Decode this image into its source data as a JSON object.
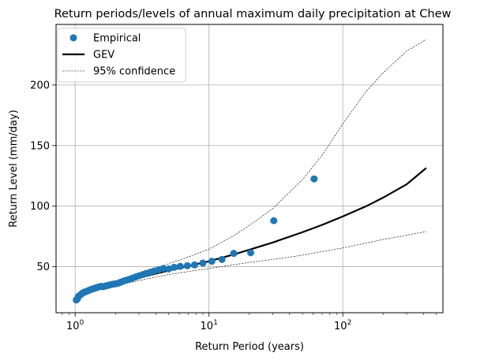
{
  "chart_data": {
    "type": "scatter",
    "title": "Return periods/levels of annual maximum daily precipitation at Chew",
    "xlabel": "Return Period (years)",
    "ylabel": "Return Level (mm/day)",
    "xscale": "log",
    "xlim": [
      0.72,
      560
    ],
    "ylim": [
      12,
      250
    ],
    "grid": true,
    "legend_position": "top-left",
    "x_ticks": [
      {
        "value": 1,
        "base": "10",
        "exp": "0"
      },
      {
        "value": 10,
        "base": "10",
        "exp": "1"
      },
      {
        "value": 100,
        "base": "10",
        "exp": "2"
      }
    ],
    "y_ticks": [
      {
        "value": 50,
        "label": "50"
      },
      {
        "value": 100,
        "label": "100"
      },
      {
        "value": 150,
        "label": "150"
      },
      {
        "value": 200,
        "label": "200"
      }
    ],
    "legend": [
      {
        "label": "Empirical",
        "style": "marker",
        "color": "#1f77b4"
      },
      {
        "label": "GEV",
        "style": "solid",
        "color": "#000000"
      },
      {
        "label": "95% confidence",
        "style": "dashed",
        "color": "#000000"
      }
    ],
    "series": [
      {
        "name": "Empirical",
        "kind": "scatter",
        "color": "#1f77b4",
        "x": [
          1.02,
          1.04,
          1.06,
          1.1,
          1.13,
          1.17,
          1.21,
          1.25,
          1.3,
          1.35,
          1.4,
          1.45,
          1.5,
          1.56,
          1.62,
          1.68,
          1.75,
          1.82,
          1.9,
          1.98,
          2.07,
          2.17,
          2.28,
          2.4,
          2.53,
          2.67,
          2.83,
          3.0,
          3.2,
          3.4,
          3.65,
          3.9,
          4.2,
          4.55,
          5.0,
          5.5,
          6.1,
          6.9,
          7.8,
          9.0,
          10.5,
          12.5,
          15.3,
          20.5,
          30.5,
          61.0
        ],
        "y": [
          22.5,
          23.5,
          25.5,
          27.0,
          28.0,
          29.0,
          29.5,
          30.2,
          31.0,
          31.6,
          32.2,
          32.8,
          33.3,
          33.8,
          33.5,
          34.0,
          34.5,
          35.0,
          35.5,
          35.8,
          36.2,
          37.0,
          38.0,
          38.8,
          39.5,
          40.5,
          41.5,
          42.5,
          43.5,
          44.5,
          45.5,
          46.5,
          47.5,
          48.5,
          48.2,
          49.5,
          50.3,
          50.8,
          51.5,
          53.0,
          54.5,
          56.0,
          61.0,
          61.5,
          88.0,
          122.5
        ]
      },
      {
        "name": "GEV",
        "kind": "line",
        "color": "#000000",
        "x": [
          1.05,
          1.2,
          1.5,
          2,
          3,
          4,
          5,
          7,
          10,
          15,
          20,
          30,
          50,
          70,
          100,
          150,
          200,
          300,
          420
        ],
        "y": [
          27.5,
          29.5,
          32.5,
          36.0,
          40.8,
          44.2,
          46.8,
          50.5,
          54.5,
          59.8,
          64.0,
          70.0,
          78.5,
          84.5,
          91.5,
          100.0,
          107.0,
          118.0,
          131.5
        ]
      },
      {
        "name": "95% confidence (upper)",
        "kind": "line",
        "color": "#000000",
        "x": [
          1.05,
          1.2,
          1.5,
          2,
          3,
          4,
          5,
          7,
          10,
          15,
          20,
          30,
          50,
          70,
          100,
          150,
          200,
          300,
          420
        ],
        "y": [
          28.0,
          30.5,
          34.0,
          38.0,
          44.0,
          48.5,
          52.5,
          58.0,
          64.5,
          75.0,
          84.0,
          98.0,
          122.0,
          142.0,
          168.0,
          195.0,
          210.0,
          228.0,
          237.5
        ]
      },
      {
        "name": "95% confidence (lower)",
        "kind": "line",
        "color": "#000000",
        "x": [
          1.05,
          1.2,
          1.5,
          2,
          3,
          4,
          5,
          7,
          10,
          15,
          20,
          30,
          50,
          70,
          100,
          150,
          200,
          300,
          420
        ],
        "y": [
          27.0,
          29.0,
          31.5,
          34.5,
          38.5,
          41.5,
          43.5,
          46.0,
          48.5,
          51.5,
          53.5,
          56.0,
          59.5,
          62.5,
          65.5,
          69.5,
          72.5,
          76.0,
          79.0
        ]
      }
    ]
  }
}
